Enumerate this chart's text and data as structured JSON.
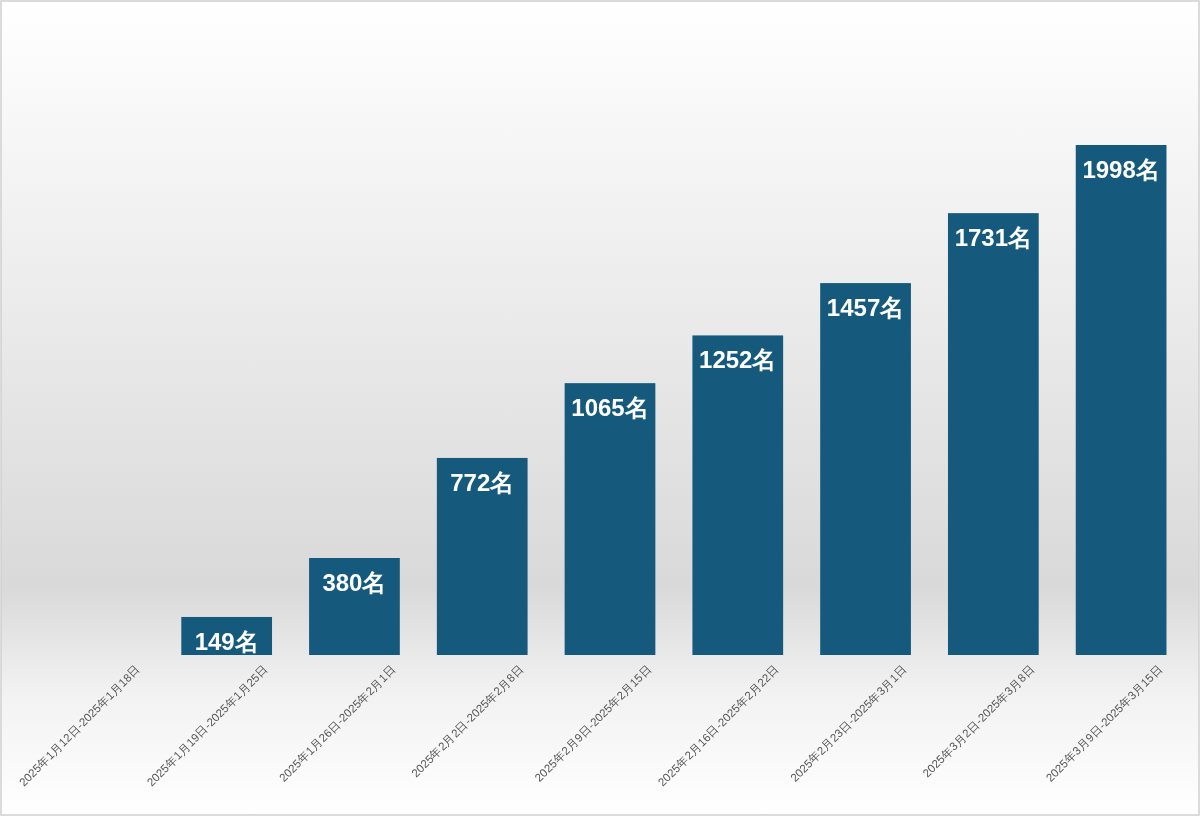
{
  "chart_data": {
    "type": "bar",
    "categories": [
      "2025年1月12日-2025年1月18日",
      "2025年1月19日-2025年1月25日",
      "2025年1月26日-2025年2月1日",
      "2025年2月2日-2025年2月8日",
      "2025年2月9日-2025年2月15日",
      "2025年2月16日-2025年2月22日",
      "2025年2月23日-2025年3月1日",
      "2025年3月2日-2025年3月8日",
      "2025年3月9日-2025年3月15日"
    ],
    "values": [
      0,
      149,
      380,
      772,
      1065,
      1252,
      1457,
      1731,
      1998
    ],
    "value_labels": [
      null,
      "149名",
      "380名",
      "772名",
      "1065名",
      "1252名",
      "1457名",
      "1731名",
      "1998名"
    ],
    "color": "#155a7c",
    "grid": false,
    "legend": false
  }
}
